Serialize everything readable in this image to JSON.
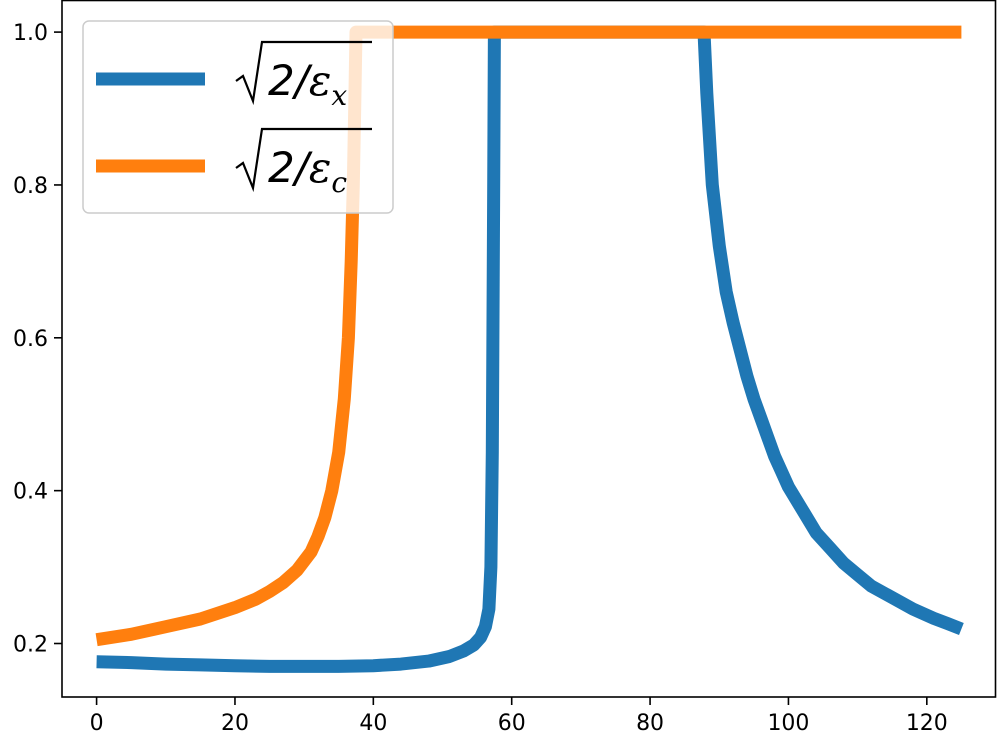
{
  "chart_data": {
    "type": "line",
    "title": "",
    "xlabel": "",
    "ylabel": "",
    "xlim": [
      -5,
      130
    ],
    "ylim": [
      0.13,
      1.042
    ],
    "x_ticks": [
      0,
      20,
      40,
      60,
      80,
      100,
      120
    ],
    "x_tick_labels": [
      "0",
      "20",
      "40",
      "60",
      "80",
      "100",
      "120"
    ],
    "y_ticks": [
      0.2,
      0.4,
      0.6,
      0.8,
      1.0
    ],
    "y_tick_labels": [
      "0.2",
      "0.4",
      "0.6",
      "0.8",
      "1.0"
    ],
    "grid": false,
    "legend_position": "upper-left",
    "series": [
      {
        "name": "√2/εx",
        "legend_parts": {
          "num": "2/",
          "var": "ε",
          "sub": "x"
        },
        "color": "#1f77b4",
        "points": [
          [
            0,
            0.176
          ],
          [
            5,
            0.175
          ],
          [
            10,
            0.173
          ],
          [
            15,
            0.172
          ],
          [
            20,
            0.171
          ],
          [
            25,
            0.17
          ],
          [
            30,
            0.17
          ],
          [
            35,
            0.17
          ],
          [
            40,
            0.171
          ],
          [
            44,
            0.173
          ],
          [
            48,
            0.177
          ],
          [
            51,
            0.183
          ],
          [
            53,
            0.19
          ],
          [
            54.5,
            0.198
          ],
          [
            55.5,
            0.208
          ],
          [
            56.2,
            0.222
          ],
          [
            56.7,
            0.245
          ],
          [
            57.0,
            0.3
          ],
          [
            57.2,
            0.45
          ],
          [
            57.4,
            0.8
          ],
          [
            57.5,
            1.0
          ],
          [
            87.8,
            1.0
          ],
          [
            88.2,
            0.92
          ],
          [
            89,
            0.8
          ],
          [
            90,
            0.72
          ],
          [
            91,
            0.66
          ],
          [
            92,
            0.62
          ],
          [
            93,
            0.585
          ],
          [
            94,
            0.55
          ],
          [
            95,
            0.52
          ],
          [
            96,
            0.495
          ],
          [
            97,
            0.47
          ],
          [
            98,
            0.445
          ],
          [
            99,
            0.425
          ],
          [
            100,
            0.405
          ],
          [
            102,
            0.375
          ],
          [
            104,
            0.345
          ],
          [
            106,
            0.325
          ],
          [
            108,
            0.305
          ],
          [
            110,
            0.29
          ],
          [
            112,
            0.275
          ],
          [
            115,
            0.26
          ],
          [
            118,
            0.245
          ],
          [
            121,
            0.233
          ],
          [
            123,
            0.226
          ],
          [
            125,
            0.219
          ]
        ]
      },
      {
        "name": "√2/εc",
        "legend_parts": {
          "num": "2/",
          "var": "ε",
          "sub": "c"
        },
        "color": "#ff7f0e",
        "points": [
          [
            0,
            0.205
          ],
          [
            5,
            0.212
          ],
          [
            10,
            0.222
          ],
          [
            15,
            0.232
          ],
          [
            20,
            0.247
          ],
          [
            23,
            0.258
          ],
          [
            25,
            0.268
          ],
          [
            27,
            0.28
          ],
          [
            29,
            0.296
          ],
          [
            31,
            0.32
          ],
          [
            32,
            0.34
          ],
          [
            33,
            0.365
          ],
          [
            34,
            0.4
          ],
          [
            35,
            0.45
          ],
          [
            35.8,
            0.52
          ],
          [
            36.4,
            0.6
          ],
          [
            36.8,
            0.7
          ],
          [
            37.1,
            0.8
          ],
          [
            37.3,
            0.9
          ],
          [
            37.5,
            1.0
          ],
          [
            125,
            1.0
          ]
        ]
      }
    ]
  }
}
